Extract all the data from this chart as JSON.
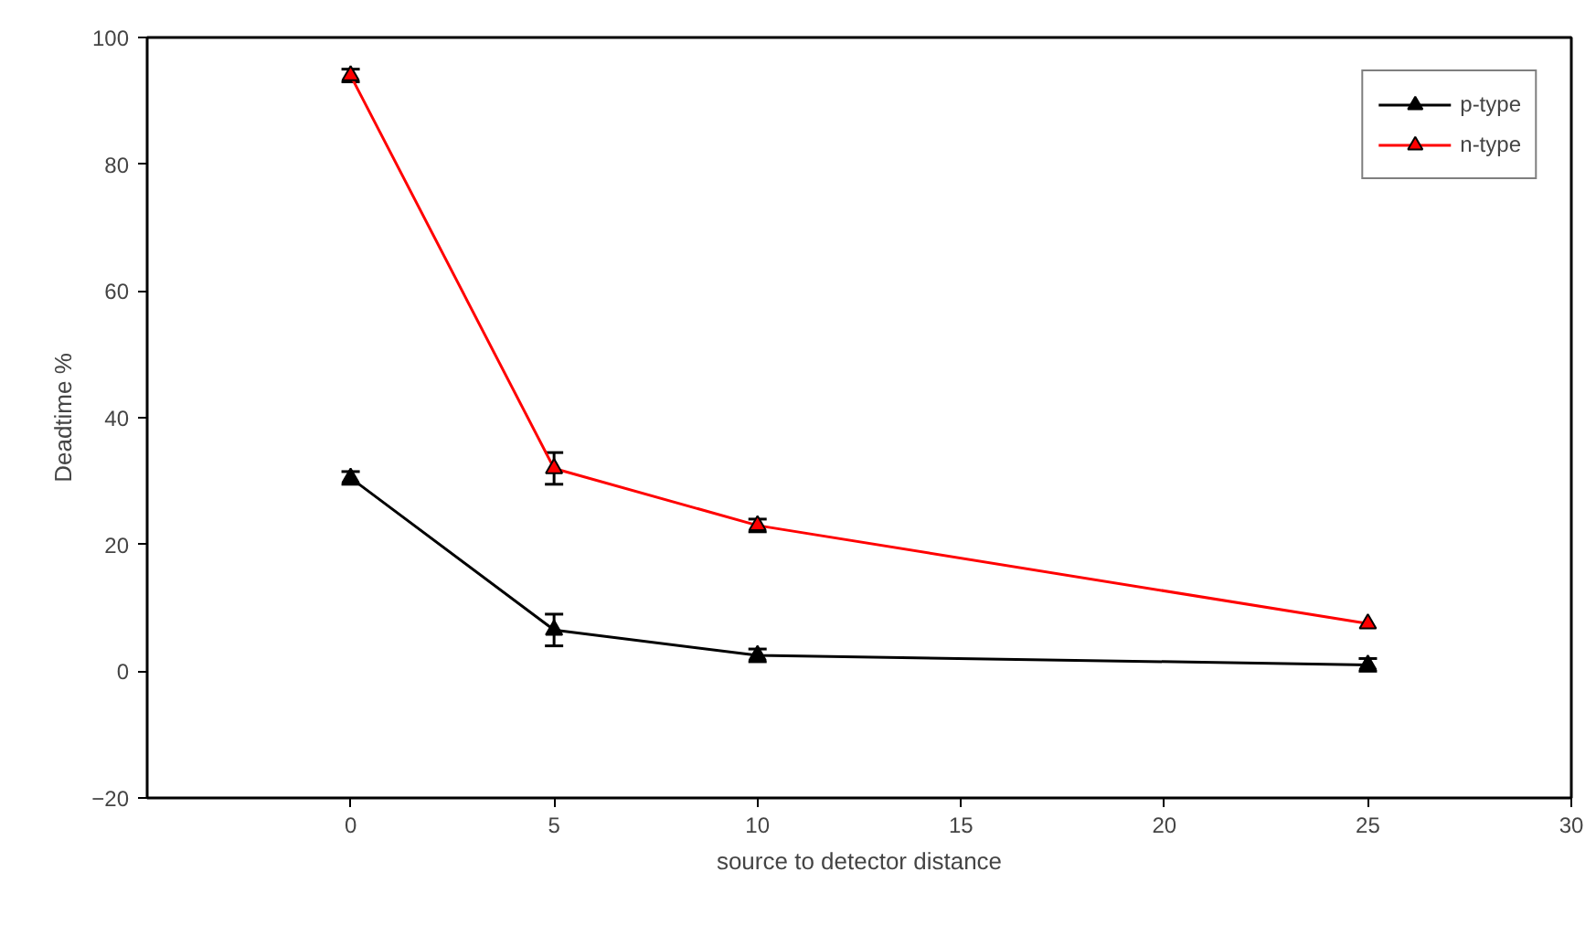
{
  "chart_data": {
    "type": "line",
    "xlabel": "source to detector distance",
    "ylabel": "Deadtime %",
    "x": [
      0,
      5,
      10,
      25
    ],
    "series": [
      {
        "name": "p-type",
        "color": "#000000",
        "marker": "triangle",
        "values": [
          30.5,
          6.5,
          2.5,
          1
        ],
        "errors": [
          1,
          2.5,
          1,
          1
        ]
      },
      {
        "name": "n-type",
        "color": "#ff0000",
        "marker": "triangle",
        "values": [
          94,
          32,
          23,
          7.5
        ],
        "errors": [
          1,
          2.5,
          1,
          null
        ]
      }
    ],
    "xlim": [
      -5,
      30
    ],
    "xticks": [
      0,
      5,
      10,
      15,
      20,
      25,
      30
    ],
    "ylim": [
      -20,
      100
    ],
    "yticks": [
      -20,
      0,
      20,
      40,
      60,
      80,
      100
    ],
    "grid": false,
    "legend": "top right",
    "line_style": "solid"
  }
}
